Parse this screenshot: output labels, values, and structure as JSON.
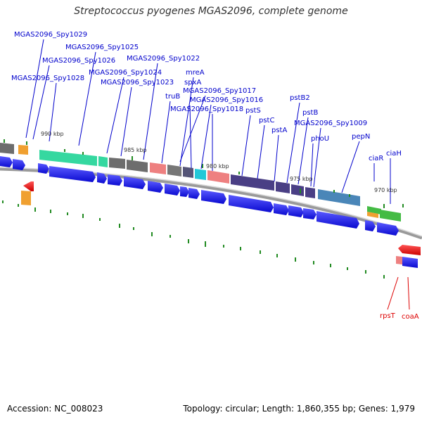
{
  "title": "Streptococcus pyogenes MGAS2096, complete genome",
  "footer": {
    "accession": "Accession: NC_008023",
    "summary": "Topology: circular; Length: 1,860,355 bp; Genes: 1,979"
  },
  "ticks": [
    "990 kbp",
    "985 kbp",
    "980 kbp",
    "975 kbp",
    "970 kbp"
  ],
  "labels": [
    "MGAS2096_Spy1029",
    "MGAS2096_Spy1025",
    "MGAS2096_Spy1026",
    "MGAS2096_Spy1028",
    "MGAS2096_Spy1022",
    "MGAS2096_Spy1024",
    "MGAS2096_Spy1023",
    "mreA",
    "spxA",
    "truB",
    "MGAS2096_Spy1017",
    "MGAS2096_Spy1016",
    "MGAS2096_Spy1018",
    "pstS",
    "pstB2",
    "pstC",
    "pstB",
    "pstA",
    "MGAS2096_Spy1009",
    "phoU",
    "pepN",
    "ciaR",
    "ciaH",
    "rpsT",
    "coaA"
  ],
  "colors": {
    "label_blue": "#0000cc",
    "label_red": "#dd0000",
    "gene_blue": "#1a1adc",
    "gene_red": "#ee1111",
    "tick_green": "#228b22",
    "backbone": "#888888"
  }
}
